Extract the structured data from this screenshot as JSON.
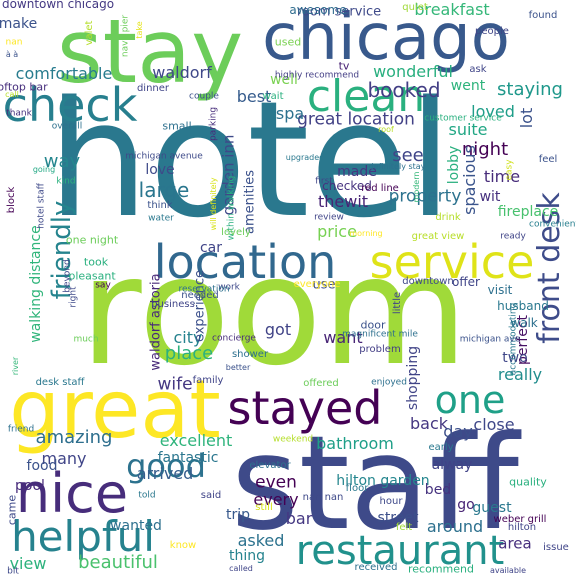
{
  "words": [
    {
      "text": "hotel",
      "color": "#2a788e"
    },
    {
      "text": "room",
      "color": "#a0da39"
    },
    {
      "text": "staff",
      "color": "#3e4a89"
    },
    {
      "text": "stay",
      "color": "#6ccd5a"
    },
    {
      "text": "chicago",
      "color": "#38598c"
    },
    {
      "text": "great",
      "color": "#fde725"
    },
    {
      "text": "location",
      "color": "#31688e"
    },
    {
      "text": "service",
      "color": "#dfe318"
    },
    {
      "text": "stayed",
      "color": "#440154"
    },
    {
      "text": "nice",
      "color": "#472d7b"
    },
    {
      "text": "helpful",
      "color": "#26828e"
    },
    {
      "text": "restaurant",
      "color": "#21918c"
    },
    {
      "text": "check",
      "color": "#277f8e"
    },
    {
      "text": "clean",
      "color": "#2ab07f"
    },
    {
      "text": "friendly",
      "color": "#25848e"
    },
    {
      "text": "front desk",
      "color": "#3e4c8a"
    },
    {
      "text": "one",
      "color": "#1fa088"
    },
    {
      "text": "good",
      "color": "#2c728e"
    },
    {
      "text": "downtown chicago",
      "color": "#443983"
    },
    {
      "text": "make",
      "color": "#3b528b"
    },
    {
      "text": "comfortable",
      "color": "#287c8e"
    },
    {
      "text": "waldorf",
      "color": "#3f4889"
    },
    {
      "text": "booked",
      "color": "#433e85"
    },
    {
      "text": "breakfast",
      "color": "#35b779"
    },
    {
      "text": "wonderful",
      "color": "#29af7f"
    },
    {
      "text": "great location",
      "color": "#424186"
    },
    {
      "text": "spa",
      "color": "#2d718e"
    },
    {
      "text": "best",
      "color": "#365c8d"
    },
    {
      "text": "well",
      "color": "#7ad151"
    },
    {
      "text": "staying",
      "color": "#1f988b"
    },
    {
      "text": "went",
      "color": "#2eb37c"
    },
    {
      "text": "loved",
      "color": "#1f9e89"
    },
    {
      "text": "suite",
      "color": "#22a785"
    },
    {
      "text": "night",
      "color": "#440154"
    },
    {
      "text": "lot",
      "color": "#3b528b"
    },
    {
      "text": "time",
      "color": "#472c7a"
    },
    {
      "text": "wit",
      "color": "#46307e"
    },
    {
      "text": "fireplace",
      "color": "#48c16e"
    },
    {
      "text": "property",
      "color": "#2c728e"
    },
    {
      "text": "lobby",
      "color": "#2ab07f"
    },
    {
      "text": "spacious",
      "color": "#3a548c"
    },
    {
      "text": "see",
      "color": "#404588"
    },
    {
      "text": "made",
      "color": "#453781"
    },
    {
      "text": "checked",
      "color": "#46327e"
    },
    {
      "text": "thewit",
      "color": "#482475"
    },
    {
      "text": "large",
      "color": "#2a768e"
    },
    {
      "text": "amenities",
      "color": "#3b518b"
    },
    {
      "text": "garden inn",
      "color": "#3e4989"
    },
    {
      "text": "way",
      "color": "#24868e"
    },
    {
      "text": "love",
      "color": "#3e4a89"
    },
    {
      "text": "price",
      "color": "#77d153"
    },
    {
      "text": "use",
      "color": "#3d4d8a"
    },
    {
      "text": "want",
      "color": "#482576"
    },
    {
      "text": "got",
      "color": "#414487"
    },
    {
      "text": "city",
      "color": "#26828e"
    },
    {
      "text": "place",
      "color": "#2cb17e"
    },
    {
      "text": "wife",
      "color": "#453882"
    },
    {
      "text": "experience",
      "color": "#3c508b"
    },
    {
      "text": "walking distance",
      "color": "#31b57b"
    },
    {
      "text": "waldorf astoria",
      "color": "#482979"
    },
    {
      "text": "perfect",
      "color": "#471164"
    },
    {
      "text": "really",
      "color": "#228d8d"
    },
    {
      "text": "two",
      "color": "#3f4788"
    },
    {
      "text": "shopping",
      "color": "#414487"
    },
    {
      "text": "excellent",
      "color": "#2fb47c"
    },
    {
      "text": "amazing",
      "color": "#2e6f8e"
    },
    {
      "text": "bathroom",
      "color": "#1f9f88"
    },
    {
      "text": "back",
      "color": "#453781"
    },
    {
      "text": "close",
      "color": "#3f4889"
    },
    {
      "text": "day",
      "color": "#3c4f8a"
    },
    {
      "text": "many",
      "color": "#404588"
    },
    {
      "text": "fantastic",
      "color": "#2a768e"
    },
    {
      "text": "hilton garden",
      "color": "#24868e"
    },
    {
      "text": "food",
      "color": "#3b528b"
    },
    {
      "text": "pool",
      "color": "#472a7a"
    },
    {
      "text": "arrived",
      "color": "#365d8d"
    },
    {
      "text": "even",
      "color": "#440154"
    },
    {
      "text": "alway",
      "color": "#404387"
    },
    {
      "text": "bed",
      "color": "#46337f"
    },
    {
      "text": "go",
      "color": "#482475"
    },
    {
      "text": "around",
      "color": "#2d708e"
    },
    {
      "text": "wanted",
      "color": "#2d708e"
    },
    {
      "text": "every",
      "color": "#440154"
    },
    {
      "text": "asked",
      "color": "#2c728e"
    },
    {
      "text": "bar",
      "color": "#453882"
    },
    {
      "text": "area",
      "color": "#472f7d"
    },
    {
      "text": "view",
      "color": "#2db27d"
    },
    {
      "text": "beautiful",
      "color": "#4ac16d"
    },
    {
      "text": "thing",
      "color": "#25838e"
    },
    {
      "text": "guest",
      "color": "#2a788e"
    },
    {
      "text": "street",
      "color": "#3c4f8a"
    },
    {
      "text": "trip",
      "color": "#38598c"
    },
    {
      "text": "room service",
      "color": "#3e4989"
    },
    {
      "text": "awesome",
      "color": "#2f6c8e"
    },
    {
      "text": "quiet",
      "color": "#a0da39"
    },
    {
      "text": "found",
      "color": "#3b528b"
    },
    {
      "text": "people",
      "color": "#404688"
    },
    {
      "text": "ask",
      "color": "#404588"
    },
    {
      "text": "used",
      "color": "#7ad151"
    },
    {
      "text": "tv",
      "color": "#482173"
    },
    {
      "text": "highly recommend",
      "color": "#433e85"
    },
    {
      "text": "dinner",
      "color": "#404588"
    },
    {
      "text": "rooftop bar",
      "color": "#472f7d"
    },
    {
      "text": "thank",
      "color": "#46307e"
    },
    {
      "text": "valet",
      "color": "#b5de2b"
    },
    {
      "text": "navy pier",
      "color": "#6ccd5a"
    },
    {
      "text": "take",
      "color": "#e5e419"
    },
    {
      "text": "couple",
      "color": "#3b528b"
    },
    {
      "text": "wait",
      "color": "#2ab07f"
    },
    {
      "text": "parking",
      "color": "#472d7b"
    },
    {
      "text": "small",
      "color": "#2d708e"
    },
    {
      "text": "overall",
      "color": "#2d708e"
    },
    {
      "text": "call",
      "color": "#b8de29"
    },
    {
      "text": "roof",
      "color": "#b8de29"
    },
    {
      "text": "customer service",
      "color": "#2ab07f"
    },
    {
      "text": "easy",
      "color": "#d0e11c"
    },
    {
      "text": "michigan avenue",
      "color": "#3e4a89"
    },
    {
      "text": "water",
      "color": "#2a788e"
    },
    {
      "text": "think",
      "color": "#3b528b"
    },
    {
      "text": "going",
      "color": "#22a884"
    },
    {
      "text": "kind",
      "color": "#2cb17e"
    },
    {
      "text": "block",
      "color": "#440154"
    },
    {
      "text": "will definitely",
      "color": "#d8e219"
    },
    {
      "text": "within walking",
      "color": "#2ab07f"
    },
    {
      "text": "definitely stay",
      "color": "#2d708e"
    },
    {
      "text": "upgraded",
      "color": "#2a788e"
    },
    {
      "text": "modern",
      "color": "#35b779"
    },
    {
      "text": "red line",
      "color": "#440154"
    },
    {
      "text": "review",
      "color": "#404588"
    },
    {
      "text": "first",
      "color": "#404588"
    },
    {
      "text": "drink",
      "color": "#b5de2b"
    },
    {
      "text": "convenient",
      "color": "#277f8e"
    },
    {
      "text": "feel",
      "color": "#3b528b"
    },
    {
      "text": "lovely",
      "color": "#6ccd5a"
    },
    {
      "text": "car",
      "color": "#404588"
    },
    {
      "text": "hotel staff",
      "color": "#3e4989"
    },
    {
      "text": "one night",
      "color": "#6ccd5a"
    },
    {
      "text": "took",
      "color": "#2ab07f"
    },
    {
      "text": "pleasant",
      "color": "#2ab07f"
    },
    {
      "text": "say",
      "color": "#440154"
    },
    {
      "text": "beyond",
      "color": "#3e4989"
    },
    {
      "text": "morning",
      "color": "#fde725"
    },
    {
      "text": "great view",
      "color": "#b8de29"
    },
    {
      "text": "ready",
      "color": "#404588"
    },
    {
      "text": "everyone",
      "color": "#fde725"
    },
    {
      "text": "downtown",
      "color": "#3e4989"
    },
    {
      "text": "offer",
      "color": "#404588"
    },
    {
      "text": "visit",
      "color": "#2d708e"
    },
    {
      "text": "husband",
      "color": "#2a788e"
    },
    {
      "text": "walk",
      "color": "#2d708e"
    },
    {
      "text": "work",
      "color": "#3e4989"
    },
    {
      "text": "reservation",
      "color": "#2d708e"
    },
    {
      "text": "needed",
      "color": "#3b528b"
    },
    {
      "text": "right",
      "color": "#3e4989"
    },
    {
      "text": "much",
      "color": "#6ccd5a"
    },
    {
      "text": "business",
      "color": "#404588"
    },
    {
      "text": "concierge",
      "color": "#472d7b"
    },
    {
      "text": "shower",
      "color": "#2d708e"
    },
    {
      "text": "door",
      "color": "#3b528b"
    },
    {
      "text": "problem",
      "color": "#433e85"
    },
    {
      "text": "little",
      "color": "#404588"
    },
    {
      "text": "magnificent mile",
      "color": "#2d708e"
    },
    {
      "text": "accommodating",
      "color": "#2a788e"
    },
    {
      "text": "michigan ave",
      "color": "#3b528b"
    },
    {
      "text": "river",
      "color": "#35b779"
    },
    {
      "text": "desk staff",
      "color": "#2a788e"
    },
    {
      "text": "family",
      "color": "#404588"
    },
    {
      "text": "better",
      "color": "#3b528b"
    },
    {
      "text": "offered",
      "color": "#6ccd5a"
    },
    {
      "text": "enjoyed",
      "color": "#2d708e"
    },
    {
      "text": "elevator",
      "color": "#2d708e"
    },
    {
      "text": "weekend",
      "color": "#b5de2b"
    },
    {
      "text": "friend",
      "color": "#2d708e"
    },
    {
      "text": "early",
      "color": "#2a788e"
    },
    {
      "text": "nan nan",
      "color": "#3e4989"
    },
    {
      "text": "floor",
      "color": "#2a788e"
    },
    {
      "text": "told",
      "color": "#2a788e"
    },
    {
      "text": "said",
      "color": "#404588"
    },
    {
      "text": "still",
      "color": "#d8e219"
    },
    {
      "text": "hour",
      "color": "#3e4989"
    },
    {
      "text": "quality",
      "color": "#2ab07f"
    },
    {
      "text": "weber grill",
      "color": "#440154"
    },
    {
      "text": "came",
      "color": "#3e4989"
    },
    {
      "text": "felt",
      "color": "#a0da39"
    },
    {
      "text": "know",
      "color": "#fde725"
    },
    {
      "text": "hilton",
      "color": "#404588"
    },
    {
      "text": "issue",
      "color": "#404588"
    },
    {
      "text": "called",
      "color": "#404588"
    },
    {
      "text": "received",
      "color": "#2d708e"
    },
    {
      "text": "recommend",
      "color": "#2ab07f"
    },
    {
      "text": "available",
      "color": "#404588"
    },
    {
      "text": "bit",
      "color": "#3e4989"
    },
    {
      "text": "nan",
      "color": "#fde725"
    },
    {
      "text": "à à",
      "color": "#3b528b"
    },
    {
      "text": "à",
      "color": "#2ab07f"
    }
  ]
}
